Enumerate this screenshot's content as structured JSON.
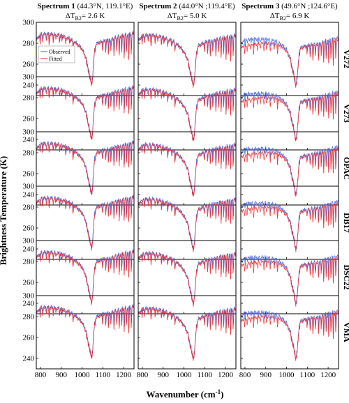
{
  "figure": {
    "ylabel": "Brightness Temperature (K)",
    "xlabel": "Wavenumber (cm",
    "xlabel_sup": "-1",
    "xlabel_end": ")"
  },
  "chart_data": {
    "type": "line",
    "xlim": [
      780,
      1250
    ],
    "ylim": [
      230,
      300
    ],
    "xticks": [
      800,
      900,
      1000,
      1100,
      1200
    ],
    "yticks": [
      240,
      260,
      280,
      300
    ],
    "grid": false,
    "legend": {
      "placement": "left",
      "entries": [
        "Observed",
        "Fitted"
      ]
    },
    "colors": {
      "observed": "#3f5bd9",
      "fitted": "#e8262a"
    },
    "columns": [
      {
        "title_bold": "Spectrum 1",
        "title_rest": " (44.3°N, 119.1°E)",
        "delta_prefix": "ΔT",
        "delta_sub": "B2",
        "delta_value": "= 2.6 K"
      },
      {
        "title_bold": "Spectrum 2",
        "title_rest": " (44.0°N ;119.4°E)",
        "delta_prefix": "ΔT",
        "delta_sub": "B2",
        "delta_value": "= 5.0 K"
      },
      {
        "title_bold": "Spectrum 3",
        "title_rest": " (49.6°N ;124.6°E)",
        "delta_prefix": "ΔT",
        "delta_sub": "B2",
        "delta_value": "= 6.9 K"
      }
    ],
    "rows": [
      "V272",
      "V273",
      "OPAC",
      "DB17",
      "DSC22",
      "VMA"
    ],
    "spectrum_shape": {
      "x": [
        780,
        800,
        850,
        900,
        950,
        980,
        1000,
        1020,
        1030,
        1040,
        1045,
        1050,
        1055,
        1060,
        1070,
        1080,
        1100,
        1150,
        1200,
        1250
      ],
      "observed": [
        [
          283,
          289,
          289,
          288,
          284,
          279,
          275,
          266,
          258,
          248,
          244,
          248,
          262,
          276,
          280,
          281,
          282,
          285,
          288,
          290
        ],
        [
          282,
          288,
          288,
          286,
          282,
          277,
          272,
          264,
          256,
          246,
          243,
          247,
          260,
          274,
          278,
          279,
          281,
          284,
          286,
          288
        ],
        [
          279,
          284,
          284,
          284,
          282,
          278,
          274,
          265,
          257,
          247,
          243,
          247,
          259,
          273,
          276,
          277,
          278,
          280,
          283,
          286
        ]
      ],
      "fitted": [
        [
          283,
          288,
          288,
          287,
          283,
          278,
          274,
          265,
          257,
          247,
          243,
          247,
          261,
          275,
          279,
          280,
          281,
          284,
          287,
          289
        ],
        [
          282,
          287,
          287,
          285,
          281,
          276,
          271,
          263,
          255,
          245,
          242,
          246,
          259,
          273,
          277,
          278,
          280,
          283,
          285,
          287
        ],
        [
          276,
          278,
          279,
          280,
          279,
          276,
          272,
          264,
          256,
          246,
          242,
          246,
          258,
          272,
          275,
          276,
          277,
          279,
          281,
          284
        ]
      ],
      "absorption_lines": [
        {
          "x": 800,
          "depth": 8
        },
        {
          "x": 812,
          "depth": 7
        },
        {
          "x": 830,
          "depth": 5
        },
        {
          "x": 843,
          "depth": 9
        },
        {
          "x": 863,
          "depth": 6
        },
        {
          "x": 875,
          "depth": 4
        },
        {
          "x": 893,
          "depth": 7
        },
        {
          "x": 905,
          "depth": 5
        },
        {
          "x": 923,
          "depth": 8
        },
        {
          "x": 942,
          "depth": 5
        },
        {
          "x": 958,
          "depth": 9
        },
        {
          "x": 1100,
          "depth": 7
        },
        {
          "x": 1115,
          "depth": 10
        },
        {
          "x": 1128,
          "depth": 14
        },
        {
          "x": 1140,
          "depth": 12
        },
        {
          "x": 1155,
          "depth": 17
        },
        {
          "x": 1168,
          "depth": 13
        },
        {
          "x": 1180,
          "depth": 20
        },
        {
          "x": 1192,
          "depth": 16
        },
        {
          "x": 1204,
          "depth": 22
        },
        {
          "x": 1215,
          "depth": 18
        },
        {
          "x": 1226,
          "depth": 25
        },
        {
          "x": 1238,
          "depth": 20
        }
      ]
    }
  }
}
